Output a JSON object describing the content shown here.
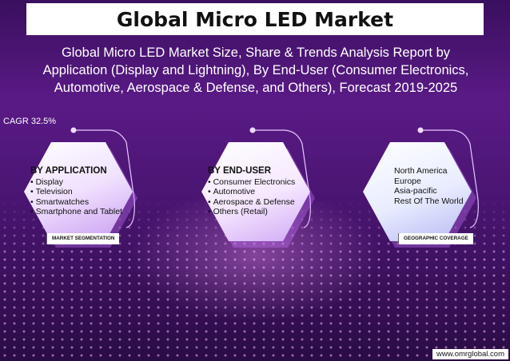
{
  "title": "Global Micro LED Market",
  "subtitle": "Global Micro LED Market Size, Share & Trends Analysis Report by Application (Display and Lightning), By End-User (Consumer Electronics, Automotive, Aerospace & Defense, and Others), Forecast 2019-2025",
  "cagr": "CAGR 32.5%",
  "cards": [
    {
      "heading": "BY APPLICATION",
      "items": [
        "Display",
        "Television",
        "Smartwatches",
        "Smartphone and Tablet"
      ],
      "tag": "MARKET SEGMENTATION"
    },
    {
      "heading": "BY END-USER",
      "items": [
        "Consumer Electronics",
        "Automotive",
        "Aerospace & Defense",
        "Others (Retail)"
      ],
      "tag": ""
    },
    {
      "heading": "",
      "items": [
        "North America",
        "Europe",
        "Asia-pacific",
        "Rest Of The World"
      ],
      "tag": "GEOGRAPHIC COVERAGE"
    }
  ],
  "footer": "www.omrglobal.com",
  "colors": {
    "background": "#4a1572",
    "title_bg": "#ffffff",
    "accent": "#d9a6ff"
  }
}
